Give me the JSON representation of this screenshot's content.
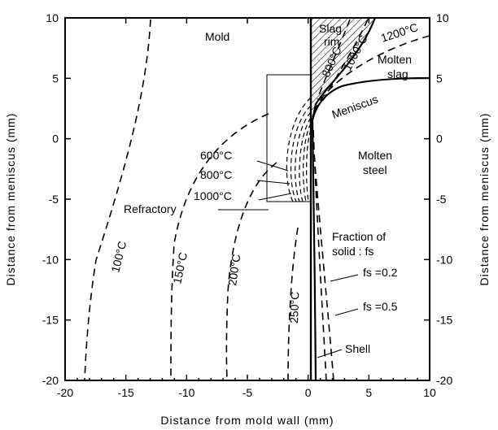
{
  "axes": {
    "x_title": "Distance from mold wall (mm)",
    "y_title_left": "Distance from meniscus (mm)",
    "y_title_right": "Distance from meniscus (mm)",
    "x_ticks": [
      "-20",
      "-15",
      "-10",
      "-5",
      "0",
      "5",
      "10"
    ],
    "y_ticks": [
      "10",
      "5",
      "0",
      "-5",
      "-10",
      "-15",
      "-20"
    ],
    "xlim": [
      -20,
      10
    ],
    "ylim": [
      -20,
      10
    ]
  },
  "labels": {
    "mold": "Mold",
    "slag_rim_1": "Slag",
    "slag_rim_2": "rim",
    "molten_slag_1": "Molten",
    "molten_slag_2": "slag",
    "meniscus": "Meniscus",
    "molten_steel_1": "Molten",
    "molten_steel_2": "steel",
    "refractory": "Refractory",
    "fraction_1": "Fraction of",
    "fraction_2": "solid : fs",
    "fs_02": "fs =0.2",
    "fs_05": "fs =0.5",
    "shell": "Shell"
  },
  "isotherms": {
    "t100": "100°C",
    "t150": "150°C",
    "t200": "200°C",
    "t250": "250°C",
    "t600": "600°C",
    "t800": "800°C",
    "t1000": "1000°C",
    "t1200": "1200°C",
    "t1000_slag": "1000°C",
    "t800_slag": "800°C"
  },
  "colors": {
    "ink": "#000000",
    "background": "#ffffff"
  }
}
